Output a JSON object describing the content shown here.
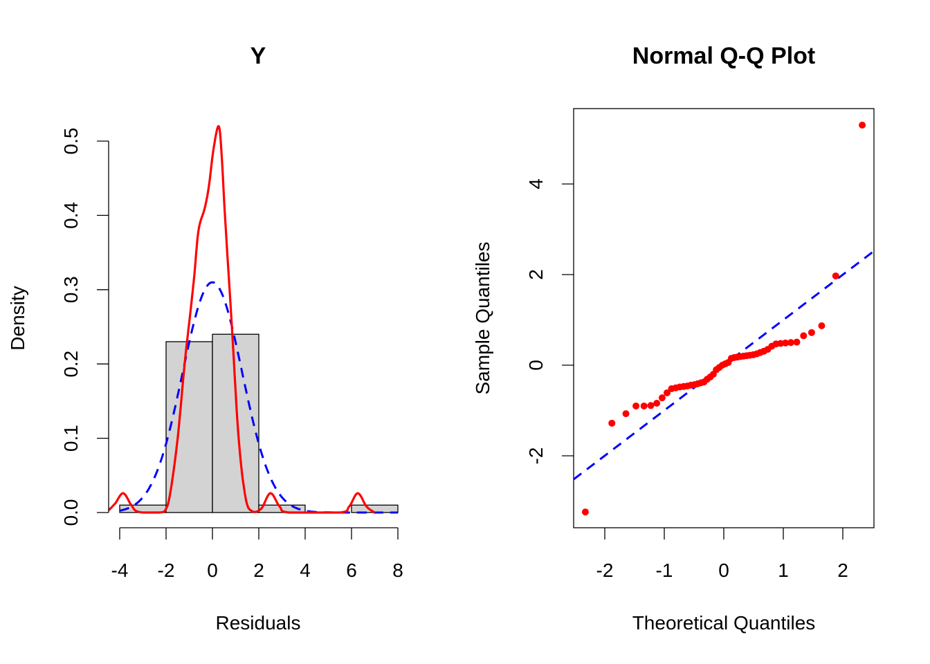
{
  "chart_data": [
    {
      "type": "histogram",
      "title": "Y",
      "xlabel": "Residuals",
      "ylabel": "Density",
      "xlim": [
        -4.5,
        8
      ],
      "ylim": [
        0,
        0.52
      ],
      "x_ticks": [
        "-4",
        "-2",
        "0",
        "2",
        "4",
        "6",
        "8"
      ],
      "y_ticks": [
        "0.0",
        "0.1",
        "0.2",
        "0.3",
        "0.4",
        "0.5"
      ],
      "breaks": [
        -4,
        -2,
        0,
        2,
        4,
        6,
        8
      ],
      "densities": [
        0.01,
        0.23,
        0.24,
        0.01,
        0.0,
        0.01
      ],
      "bar_color": "#D3D3D3",
      "normal_curve": {
        "mean": 0.0,
        "sd": 1.287,
        "color": "#0000FF",
        "style": "dashed"
      },
      "kde_curve": {
        "color": "#FF0000",
        "points": [
          [
            -4.48,
            0.003
          ],
          [
            -4.2,
            0.012
          ],
          [
            -3.85,
            0.026
          ],
          [
            -3.5,
            0.01
          ],
          [
            -3.2,
            0.001
          ],
          [
            -2.3,
            0
          ],
          [
            -2.0,
            0.005
          ],
          [
            -1.8,
            0.03
          ],
          [
            -1.5,
            0.1
          ],
          [
            -1.2,
            0.2
          ],
          [
            -0.95,
            0.27
          ],
          [
            -0.78,
            0.32
          ],
          [
            -0.6,
            0.38
          ],
          [
            -0.33,
            0.41
          ],
          [
            -0.15,
            0.44
          ],
          [
            0.05,
            0.49
          ],
          [
            0.27,
            0.52
          ],
          [
            0.4,
            0.48
          ],
          [
            0.54,
            0.4
          ],
          [
            0.84,
            0.25
          ],
          [
            1.13,
            0.1
          ],
          [
            1.43,
            0.02
          ],
          [
            1.7,
            0.002
          ],
          [
            2.1,
            0.005
          ],
          [
            2.5,
            0.026
          ],
          [
            2.9,
            0.008
          ],
          [
            3.3,
            0.0
          ],
          [
            5.5,
            0
          ],
          [
            5.9,
            0.008
          ],
          [
            6.27,
            0.026
          ],
          [
            6.65,
            0.008
          ],
          [
            7.0,
            0.0
          ]
        ]
      }
    },
    {
      "type": "scatter",
      "title": "Normal Q-Q Plot",
      "xlabel": "Theoretical Quantiles",
      "ylabel": "Sample Quantiles",
      "xlim": [
        -2.52,
        2.52
      ],
      "ylim": [
        -3.59,
        5.66
      ],
      "x_ticks": [
        "-2",
        "-1",
        "0",
        "1",
        "2"
      ],
      "y_ticks": [
        "-2",
        "0",
        "2",
        "4"
      ],
      "point_color": "#FF0000",
      "sample_quantiles": [
        -3.24,
        -1.28,
        -1.07,
        -0.9,
        -0.9,
        -0.89,
        -0.84,
        -0.72,
        -0.61,
        -0.52,
        -0.5,
        -0.48,
        -0.47,
        -0.46,
        -0.44,
        -0.43,
        -0.41,
        -0.39,
        -0.37,
        -0.31,
        -0.26,
        -0.2,
        -0.1,
        -0.05,
        0.0,
        0.03,
        0.06,
        0.15,
        0.17,
        0.18,
        0.19,
        0.2,
        0.21,
        0.22,
        0.23,
        0.25,
        0.28,
        0.31,
        0.35,
        0.42,
        0.47,
        0.48,
        0.49,
        0.5,
        0.51,
        0.65,
        0.72,
        0.87,
        1.97,
        5.3
      ],
      "qq_line": {
        "intercept": 0.0,
        "slope": 1.0,
        "color": "#0000FF",
        "style": "dashed"
      }
    }
  ]
}
